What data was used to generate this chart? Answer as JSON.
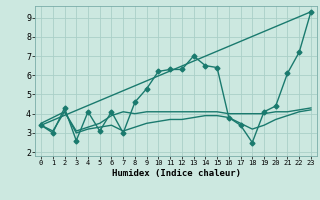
{
  "xlabel": "Humidex (Indice chaleur)",
  "xlim": [
    -0.5,
    23.5
  ],
  "ylim": [
    1.8,
    9.6
  ],
  "xticks": [
    0,
    1,
    2,
    3,
    4,
    5,
    6,
    7,
    8,
    9,
    10,
    11,
    12,
    13,
    14,
    15,
    16,
    17,
    18,
    19,
    20,
    21,
    22,
    23
  ],
  "yticks": [
    2,
    3,
    4,
    5,
    6,
    7,
    8,
    9
  ],
  "bg_color": "#cce8e0",
  "grid_color": "#aacfc8",
  "line_color": "#1a7a6e",
  "series": [
    {
      "x": [
        0,
        1,
        2,
        3,
        4,
        5,
        6,
        7,
        8,
        9,
        10,
        11,
        12,
        13,
        14,
        15,
        16,
        17,
        18,
        19,
        20,
        21,
        22,
        23
      ],
      "y": [
        3.4,
        3.0,
        4.3,
        2.6,
        4.1,
        3.1,
        4.1,
        3.0,
        4.6,
        5.3,
        6.2,
        6.3,
        6.3,
        7.0,
        6.5,
        6.4,
        3.8,
        3.4,
        2.5,
        4.1,
        4.4,
        6.1,
        7.2,
        9.3
      ],
      "marker": "D",
      "markersize": 2.5,
      "linewidth": 1.0,
      "linestyle": "-"
    },
    {
      "x": [
        0,
        23
      ],
      "y": [
        3.4,
        9.3
      ],
      "marker": "None",
      "markersize": 0,
      "linewidth": 1.0,
      "linestyle": "-"
    },
    {
      "x": [
        0,
        1,
        2,
        3,
        4,
        5,
        6,
        7,
        8,
        9,
        10,
        11,
        12,
        13,
        14,
        15,
        16,
        17,
        18,
        19,
        20,
        21,
        22,
        23
      ],
      "y": [
        3.4,
        3.1,
        4.1,
        3.0,
        3.2,
        3.3,
        3.4,
        3.1,
        3.3,
        3.5,
        3.6,
        3.7,
        3.7,
        3.8,
        3.9,
        3.9,
        3.8,
        3.5,
        3.2,
        3.4,
        3.7,
        3.9,
        4.1,
        4.2
      ],
      "marker": "None",
      "markersize": 0,
      "linewidth": 1.0,
      "linestyle": "-"
    },
    {
      "x": [
        0,
        1,
        2,
        3,
        4,
        5,
        6,
        7,
        8,
        9,
        10,
        11,
        12,
        13,
        14,
        15,
        16,
        17,
        18,
        19,
        20,
        21,
        22,
        23
      ],
      "y": [
        3.5,
        3.8,
        4.1,
        3.1,
        3.3,
        3.5,
        3.9,
        4.1,
        4.0,
        4.1,
        4.1,
        4.1,
        4.1,
        4.1,
        4.1,
        4.1,
        4.0,
        4.0,
        4.0,
        4.0,
        4.1,
        4.1,
        4.2,
        4.3
      ],
      "marker": "None",
      "markersize": 0,
      "linewidth": 1.0,
      "linestyle": "-"
    }
  ]
}
